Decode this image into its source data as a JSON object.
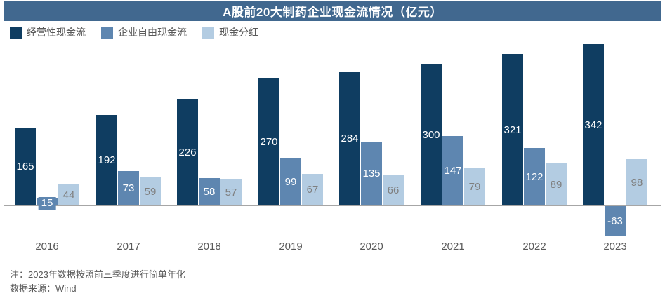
{
  "title": "A股前20大制药企业现金流情况（亿元）",
  "colors": {
    "header_bg": "#41688F",
    "series_operating": "#0F3D61",
    "series_free_cash": "#5E86B0",
    "series_dividend": "#B3CCE2",
    "axis_line": "#A6A6A6",
    "label_on_dark": "#FFFFFF",
    "label_on_light": "#7F7F7F",
    "text_gray": "#595959"
  },
  "legend": [
    {
      "label": "经营性现金流",
      "color": "#0F3D61"
    },
    {
      "label": "企业自由现金流",
      "color": "#5E86B0"
    },
    {
      "label": "现金分红",
      "color": "#B3CCE2"
    }
  ],
  "chart_data": {
    "type": "bar",
    "title": "A股前20大制药企业现金流情况（亿元）",
    "categories": [
      "2016",
      "2017",
      "2018",
      "2019",
      "2020",
      "2021",
      "2022",
      "2023"
    ],
    "series": [
      {
        "name": "经营性现金流",
        "color": "#0F3D61",
        "label_color": "#FFFFFF",
        "values": [
          165,
          192,
          226,
          270,
          284,
          300,
          321,
          342
        ]
      },
      {
        "name": "企业自由现金流",
        "color": "#5E86B0",
        "label_color": "#FFFFFF",
        "values": [
          15,
          73,
          58,
          99,
          135,
          147,
          122,
          -63
        ]
      },
      {
        "name": "现金分红",
        "color": "#B3CCE2",
        "label_color": "#7F7F7F",
        "values": [
          44,
          59,
          57,
          67,
          66,
          79,
          89,
          98
        ]
      }
    ],
    "xlabel": "",
    "ylabel": "",
    "ylim": [
      -80,
      360
    ],
    "grid": false,
    "data_labels": true,
    "legend_position": "top-left"
  },
  "notes": [
    "注：2023年数据按照前三季度进行简单年化",
    "数据来源：Wind"
  ]
}
